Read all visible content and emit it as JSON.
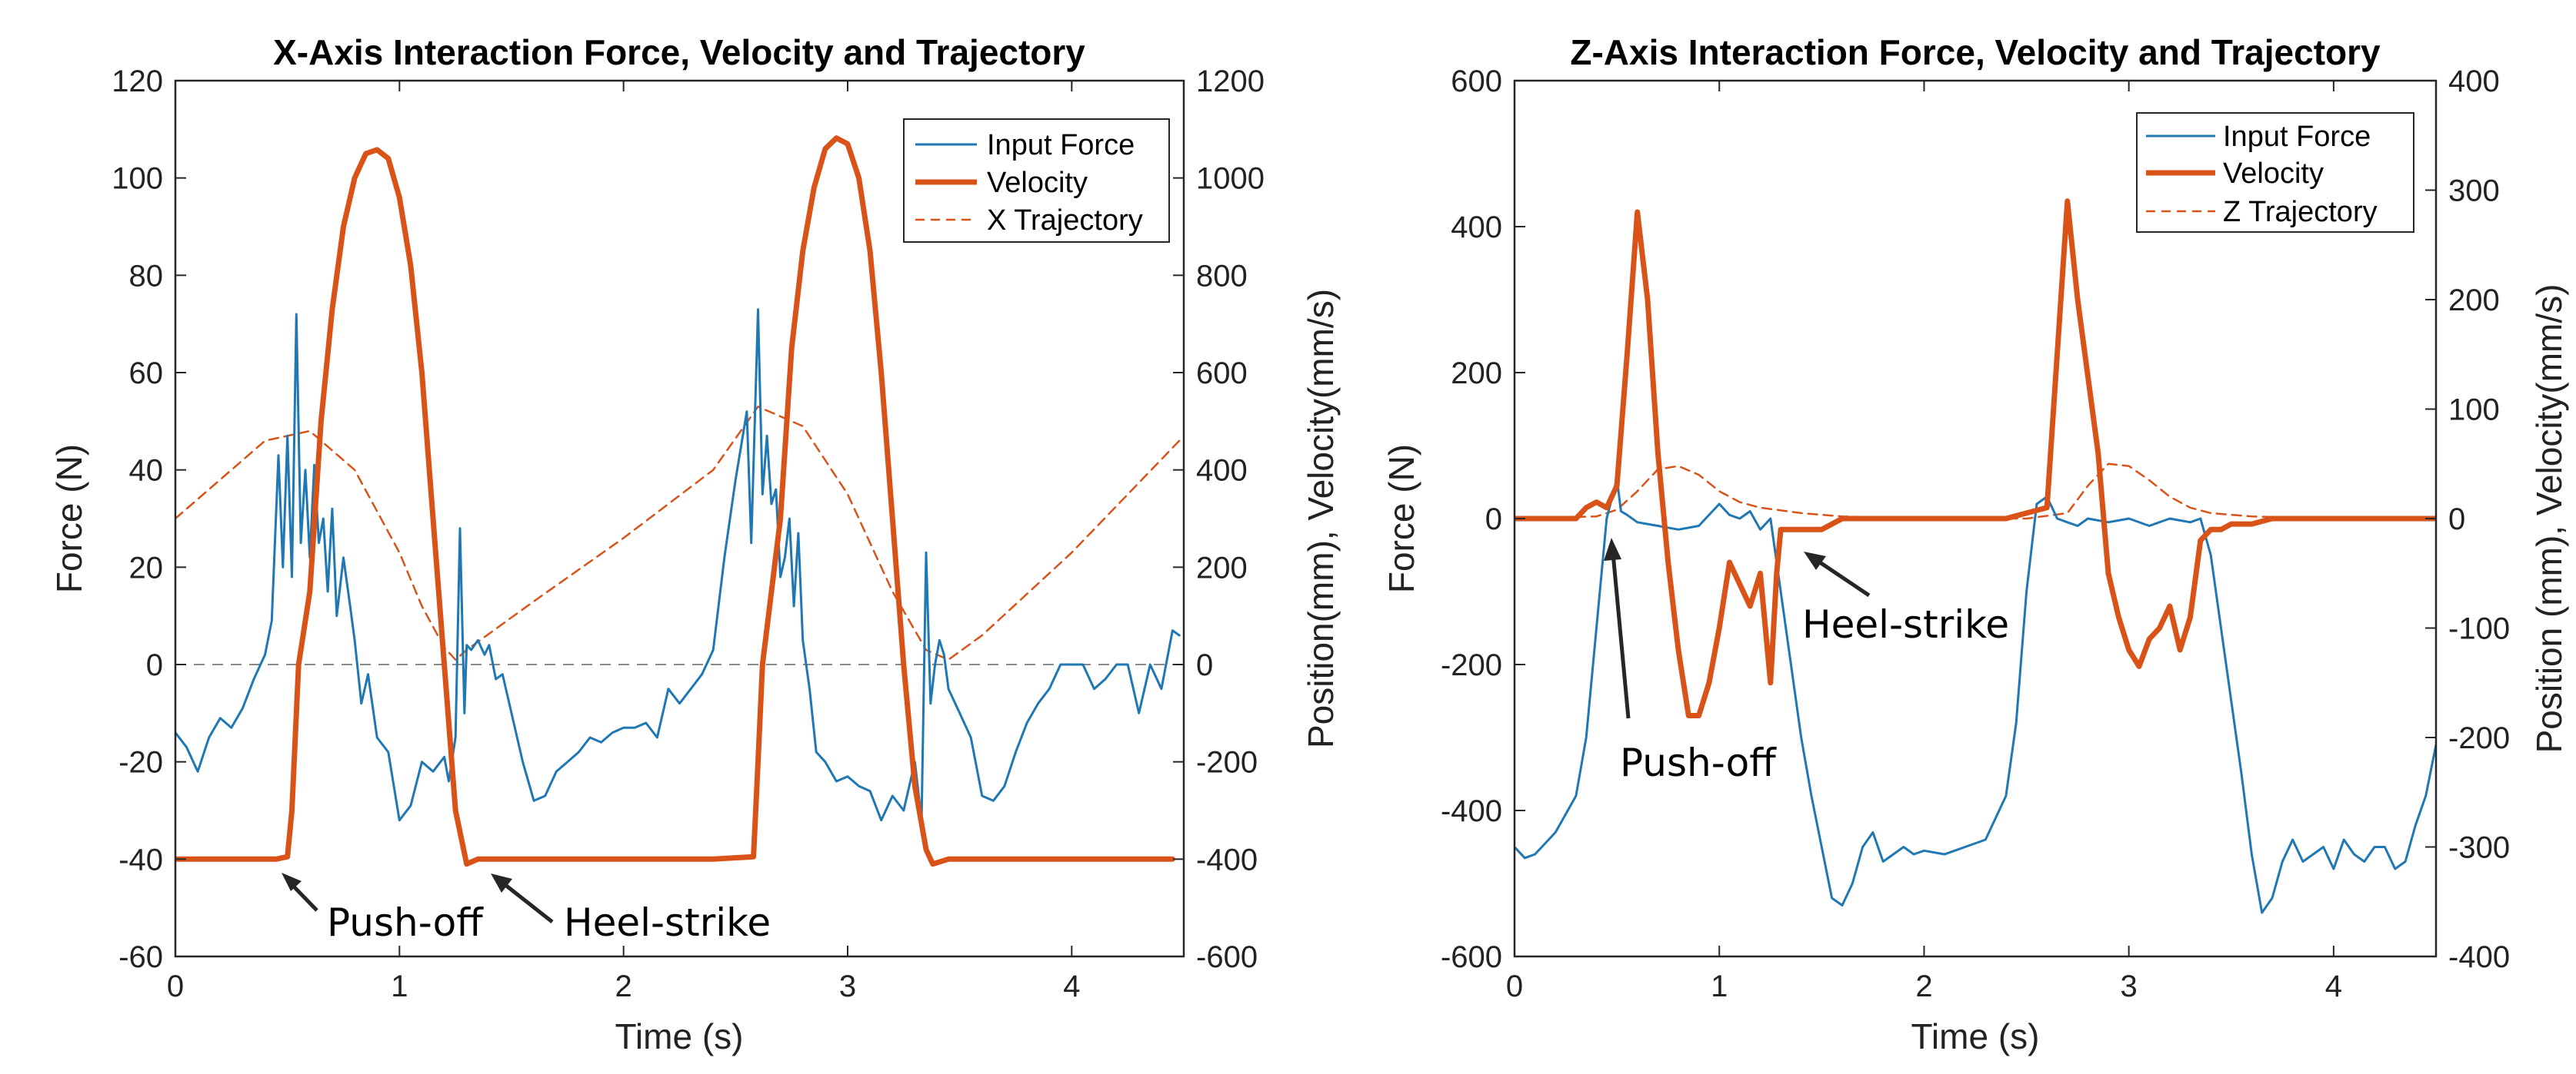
{
  "chart_data": [
    {
      "type": "line",
      "title": "X-Axis Interaction Force, Velocity and Trajectory",
      "xlabel": "Time (s)",
      "ylabel": "Force (N)",
      "y2label": "Position(mm), Velocity(mm/s)",
      "xlim": [
        0,
        4.5
      ],
      "ylim": [
        -60,
        120
      ],
      "y2lim": [
        -600,
        1200
      ],
      "xticks": [
        "0",
        "1",
        "2",
        "3",
        "4"
      ],
      "yticks": [
        "-60",
        "-40",
        "-20",
        "0",
        "20",
        "40",
        "60",
        "80",
        "100",
        "120"
      ],
      "y2ticks": [
        "-600",
        "-400",
        "-200",
        "0",
        "200",
        "400",
        "600",
        "800",
        "1000",
        "1200"
      ],
      "legend": [
        "Input Force",
        "Velocity",
        "X Trajectory"
      ],
      "legend_position": "top-right",
      "colors": {
        "force": "#1f77b4",
        "velocity": "#d95319",
        "trajectory": "#d95319",
        "zero": "#888888"
      },
      "series": [
        {
          "name": "Input Force",
          "axis": "left",
          "x": [
            0,
            0.05,
            0.1,
            0.15,
            0.2,
            0.25,
            0.3,
            0.35,
            0.4,
            0.43,
            0.46,
            0.48,
            0.5,
            0.52,
            0.54,
            0.56,
            0.58,
            0.6,
            0.62,
            0.64,
            0.66,
            0.68,
            0.7,
            0.72,
            0.75,
            0.78,
            0.8,
            0.83,
            0.86,
            0.9,
            0.95,
            1.0,
            1.05,
            1.1,
            1.15,
            1.2,
            1.22,
            1.25,
            1.27,
            1.29,
            1.3,
            1.32,
            1.35,
            1.38,
            1.4,
            1.43,
            1.46,
            1.5,
            1.55,
            1.6,
            1.65,
            1.7,
            1.75,
            1.8,
            1.85,
            1.9,
            1.95,
            2.0,
            2.05,
            2.1,
            2.15,
            2.2,
            2.25,
            2.3,
            2.35,
            2.4,
            2.45,
            2.5,
            2.55,
            2.57,
            2.6,
            2.62,
            2.64,
            2.66,
            2.68,
            2.7,
            2.72,
            2.74,
            2.76,
            2.78,
            2.8,
            2.83,
            2.86,
            2.9,
            2.95,
            3.0,
            3.05,
            3.1,
            3.15,
            3.2,
            3.25,
            3.3,
            3.33,
            3.35,
            3.37,
            3.39,
            3.41,
            3.43,
            3.45,
            3.5,
            3.55,
            3.6,
            3.65,
            3.7,
            3.75,
            3.8,
            3.85,
            3.9,
            3.95,
            4.0,
            4.05,
            4.1,
            4.15,
            4.2,
            4.25,
            4.3,
            4.35,
            4.4,
            4.45,
            4.48
          ],
          "values": [
            -14,
            -17,
            -22,
            -15,
            -11,
            -13,
            -9,
            -3,
            2,
            9,
            43,
            20,
            47,
            18,
            72,
            25,
            40,
            22,
            41,
            25,
            30,
            15,
            32,
            10,
            22,
            12,
            5,
            -8,
            -2,
            -15,
            -18,
            -32,
            -29,
            -20,
            -22,
            -19,
            -24,
            -15,
            28,
            -10,
            4,
            3,
            5,
            2,
            4,
            -3,
            -2,
            -10,
            -20,
            -28,
            -27,
            -22,
            -20,
            -18,
            -15,
            -16,
            -14,
            -13,
            -13,
            -12,
            -15,
            -5,
            -8,
            -5,
            -2,
            3,
            22,
            38,
            52,
            25,
            73,
            35,
            47,
            33,
            36,
            18,
            22,
            30,
            12,
            27,
            5,
            -5,
            -18,
            -20,
            -24,
            -23,
            -25,
            -26,
            -32,
            -27,
            -30,
            -20,
            -32,
            23,
            -8,
            0,
            5,
            2,
            -5,
            -10,
            -15,
            -27,
            -28,
            -25,
            -18,
            -12,
            -8,
            -5,
            0,
            0,
            0,
            -5,
            -3,
            0,
            0,
            -10,
            0,
            -5,
            7,
            6
          ]
        },
        {
          "name": "Velocity",
          "axis": "right",
          "x": [
            0,
            0.45,
            0.5,
            0.52,
            0.55,
            0.6,
            0.65,
            0.7,
            0.75,
            0.8,
            0.85,
            0.9,
            0.95,
            1.0,
            1.05,
            1.1,
            1.15,
            1.2,
            1.25,
            1.3,
            1.35,
            1.4,
            1.6,
            2.0,
            2.4,
            2.58,
            2.6,
            2.62,
            2.7,
            2.75,
            2.8,
            2.85,
            2.9,
            2.95,
            3.0,
            3.05,
            3.1,
            3.15,
            3.2,
            3.25,
            3.3,
            3.35,
            3.38,
            3.45,
            3.6,
            4.0,
            4.45
          ],
          "values": [
            -400,
            -400,
            -395,
            -300,
            0,
            150,
            500,
            730,
            900,
            1000,
            1050,
            1058,
            1040,
            960,
            820,
            600,
            300,
            0,
            -300,
            -410,
            -400,
            -400,
            -400,
            -400,
            -400,
            -395,
            -200,
            0,
            300,
            650,
            850,
            980,
            1060,
            1082,
            1070,
            1000,
            850,
            600,
            300,
            0,
            -250,
            -380,
            -410,
            -400,
            -400,
            -400,
            -400
          ]
        },
        {
          "name": "X Trajectory",
          "axis": "right",
          "x": [
            0,
            0.2,
            0.4,
            0.6,
            0.8,
            1.0,
            1.1,
            1.2,
            1.25,
            1.3,
            1.6,
            2.0,
            2.4,
            2.6,
            2.8,
            3.0,
            3.2,
            3.35,
            3.45,
            3.6,
            4.0,
            4.48
          ],
          "values": [
            300,
            380,
            460,
            480,
            400,
            230,
            120,
            35,
            10,
            30,
            130,
            260,
            400,
            530,
            490,
            350,
            150,
            30,
            10,
            60,
            230,
            460
          ]
        }
      ],
      "annotations": [
        "Push-off",
        "Heel-strike"
      ]
    },
    {
      "type": "line",
      "title": "Z-Axis Interaction Force, Velocity and Trajectory",
      "xlabel": "Time (s)",
      "ylabel": "Force (N)",
      "y2label": "Position (mm), Velocity(mm/s)",
      "xlim": [
        0,
        4.5
      ],
      "ylim": [
        -600,
        600
      ],
      "y2lim": [
        -400,
        400
      ],
      "xticks": [
        "0",
        "1",
        "2",
        "3",
        "4"
      ],
      "yticks": [
        "-600",
        "-400",
        "-200",
        "0",
        "200",
        "400",
        "600"
      ],
      "y2ticks": [
        "-400",
        "-300",
        "-200",
        "-100",
        "0",
        "100",
        "200",
        "300",
        "400"
      ],
      "legend": [
        "Input Force",
        "Velocity",
        "Z Trajectory"
      ],
      "legend_position": "top-right",
      "colors": {
        "force": "#1f77b4",
        "velocity": "#d95319",
        "trajectory": "#d95319"
      },
      "series": [
        {
          "name": "Input Force",
          "axis": "left",
          "x": [
            0,
            0.05,
            0.1,
            0.2,
            0.3,
            0.35,
            0.4,
            0.45,
            0.5,
            0.52,
            0.55,
            0.6,
            0.7,
            0.8,
            0.9,
            1.0,
            1.05,
            1.1,
            1.15,
            1.2,
            1.25,
            1.3,
            1.35,
            1.4,
            1.45,
            1.5,
            1.55,
            1.6,
            1.65,
            1.7,
            1.75,
            1.8,
            1.85,
            1.9,
            1.95,
            2.0,
            2.1,
            2.2,
            2.3,
            2.4,
            2.45,
            2.5,
            2.55,
            2.6,
            2.65,
            2.7,
            2.75,
            2.8,
            2.9,
            3.0,
            3.1,
            3.2,
            3.3,
            3.35,
            3.4,
            3.45,
            3.5,
            3.55,
            3.6,
            3.65,
            3.7,
            3.75,
            3.8,
            3.85,
            3.9,
            3.95,
            4.0,
            4.05,
            4.1,
            4.15,
            4.2,
            4.25,
            4.3,
            4.35,
            4.4,
            4.45,
            4.5
          ],
          "values": [
            -450,
            -465,
            -460,
            -430,
            -380,
            -300,
            -150,
            0,
            55,
            10,
            5,
            -5,
            -10,
            -15,
            -10,
            20,
            5,
            0,
            10,
            -15,
            0,
            -100,
            -200,
            -300,
            -380,
            -450,
            -520,
            -530,
            -500,
            -450,
            -430,
            -470,
            -460,
            -450,
            -460,
            -455,
            -460,
            -450,
            -440,
            -380,
            -280,
            -100,
            20,
            30,
            0,
            -5,
            -10,
            0,
            -5,
            0,
            -10,
            0,
            -5,
            0,
            -50,
            -150,
            -250,
            -350,
            -460,
            -540,
            -520,
            -470,
            -440,
            -470,
            -460,
            -450,
            -480,
            -440,
            -460,
            -470,
            -450,
            -450,
            -480,
            -470,
            -420,
            -380,
            -310
          ]
        },
        {
          "name": "Velocity",
          "axis": "right",
          "x": [
            0,
            0.3,
            0.35,
            0.4,
            0.45,
            0.5,
            0.55,
            0.6,
            0.65,
            0.7,
            0.75,
            0.8,
            0.85,
            0.9,
            0.95,
            1.0,
            1.05,
            1.1,
            1.15,
            1.2,
            1.25,
            1.28,
            1.3,
            1.4,
            1.5,
            1.6,
            1.7,
            2.0,
            2.4,
            2.5,
            2.6,
            2.65,
            2.7,
            2.75,
            2.8,
            2.85,
            2.9,
            2.95,
            3.0,
            3.05,
            3.1,
            3.15,
            3.2,
            3.25,
            3.3,
            3.35,
            3.4,
            3.45,
            3.5,
            3.6,
            3.7,
            3.8,
            4.0,
            4.5
          ],
          "values": [
            0,
            0,
            10,
            15,
            10,
            30,
            150,
            280,
            200,
            60,
            -40,
            -120,
            -180,
            -180,
            -150,
            -100,
            -40,
            -60,
            -80,
            -50,
            -150,
            -50,
            -10,
            -10,
            -10,
            0,
            0,
            0,
            0,
            5,
            10,
            150,
            290,
            200,
            130,
            60,
            -50,
            -90,
            -120,
            -135,
            -110,
            -100,
            -80,
            -120,
            -90,
            -20,
            -10,
            -10,
            -5,
            -5,
            0,
            0,
            0,
            0
          ]
        },
        {
          "name": "Z Trajectory",
          "axis": "right",
          "x": [
            0,
            0.4,
            0.5,
            0.6,
            0.7,
            0.8,
            0.9,
            1.0,
            1.1,
            1.2,
            1.4,
            1.6,
            2.0,
            2.5,
            2.7,
            2.8,
            2.9,
            3.0,
            3.1,
            3.2,
            3.3,
            3.4,
            3.6,
            4.0,
            4.5
          ],
          "values": [
            0,
            2,
            8,
            25,
            45,
            48,
            40,
            25,
            15,
            10,
            5,
            2,
            0,
            0,
            5,
            30,
            50,
            48,
            35,
            20,
            10,
            5,
            2,
            0,
            0
          ]
        }
      ],
      "annotations": [
        "Push-off",
        "Heel-strike"
      ]
    }
  ]
}
